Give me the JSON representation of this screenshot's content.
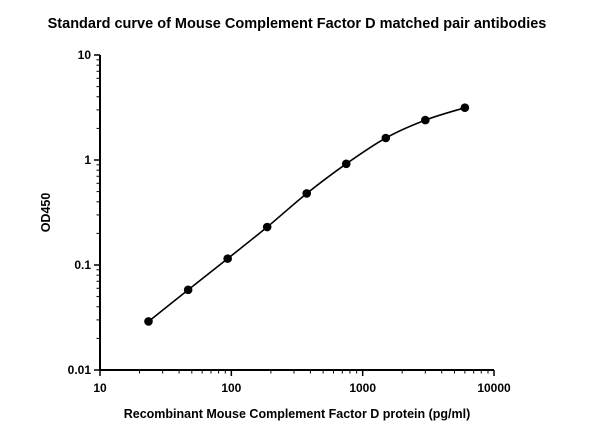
{
  "chart_data": {
    "type": "scatter",
    "title": "Standard curve of Mouse Complement Factor D matched pair antibodies",
    "xlabel": "Recombinant Mouse Complement Factor D protein (pg/ml)",
    "ylabel": "OD450",
    "x_scale": "log",
    "y_scale": "log",
    "xlim": [
      10,
      10000
    ],
    "ylim": [
      0.01,
      10
    ],
    "x_ticks": [
      "10",
      "100",
      "1000",
      "10000"
    ],
    "y_ticks": [
      "0.01",
      "0.1",
      "1",
      "10"
    ],
    "grid": false,
    "legend": "none",
    "fit_curve": true,
    "series": [
      {
        "x": [
          23.4,
          46.9,
          93.8,
          187.5,
          375,
          750,
          1500,
          3000,
          6000
        ],
        "y": [
          0.029,
          0.058,
          0.115,
          0.23,
          0.48,
          0.92,
          1.62,
          2.4,
          3.15
        ]
      }
    ],
    "colors": {
      "marker": "#000000",
      "line": "#000000",
      "axis": "#000000"
    }
  }
}
